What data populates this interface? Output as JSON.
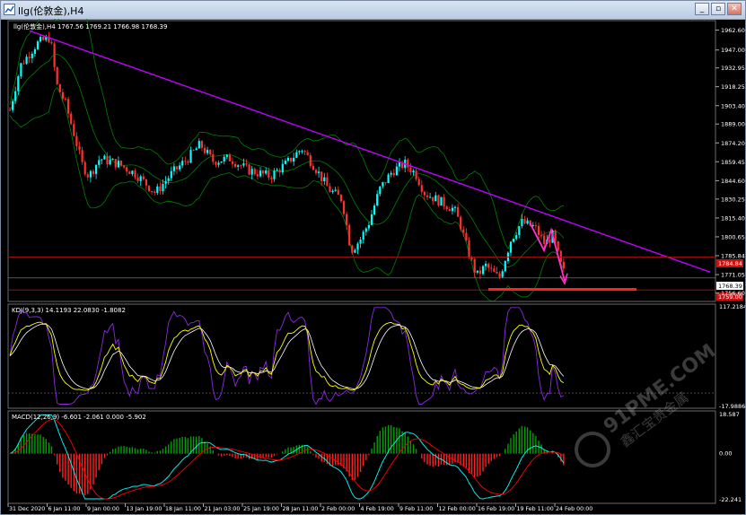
{
  "window": {
    "title": "llg(伦敦金),H4",
    "buttons": {
      "minimize": "_",
      "restore": "▫",
      "close": "✕"
    }
  },
  "main_chart": {
    "info": "llg(伦敦金),H4  1767.56 1769.21 1766.98 1768.39",
    "price_ticks": [
      "1962.60",
      "1947.00",
      "1932.95",
      "1918.25",
      "1903.40",
      "1889.00",
      "1874.20",
      "1859.45",
      "1844.60",
      "1830.25",
      "1815.40",
      "1800.65",
      "1785.84",
      "1771.05",
      "1756.60"
    ],
    "hline_upper_label": "1784.84",
    "current_price_label": "1768.39",
    "support_label": "1759.00",
    "colors": {
      "candle_up": "#00ffff",
      "candle_down": "#ff3030",
      "band": "#008000",
      "trendline": "#c000ff",
      "support_line": "#ff2020",
      "zigzag": "#ff33cc"
    }
  },
  "kdj": {
    "info": "KDJ(9,3,3) 14.1193 22.0830 -1.8082",
    "ticks": {
      "top": "117.2184",
      "bottom": "-17.9886"
    },
    "colors": {
      "k": "#ffff00",
      "d": "#ffffff",
      "j": "#8a2be2"
    }
  },
  "macd": {
    "info": "MACD(12,26,9) -6.601 -2.061 0.000 -5.902",
    "ticks": {
      "top": "18.587",
      "mid": "0.00",
      "bottom": "-22.241"
    },
    "colors": {
      "pos": "#00a000",
      "neg": "#ff2020",
      "line1": "#00ffff",
      "line2": "#ff0000"
    }
  },
  "time_axis": [
    "31 Dec 2020",
    "6 Jan 11:00",
    "9 Jan 00:00",
    "13 Jan 19:00",
    "18 Jan 11:00",
    "21 Jan 03:00",
    "25 Jan 19:00",
    "28 Jan 11:00",
    "2 Feb 00:00",
    "4 Feb 19:00",
    "9 Feb 11:00",
    "12 Feb 00:00",
    "16 Feb 19:00",
    "19 Feb 11:00",
    "24 Feb 00:00"
  ],
  "watermark": {
    "site": "91PME.COM",
    "brand": "鑫汇宝贵金属"
  }
}
